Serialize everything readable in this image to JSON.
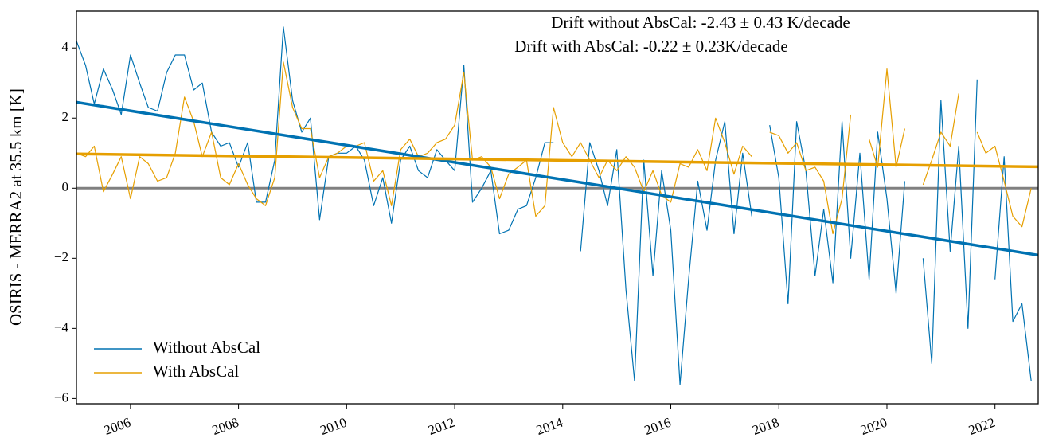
{
  "chart_data": {
    "type": "line",
    "annotations": [
      "Drift without AbsCal: -2.43 ± 0.43 K/decade",
      "Drift with AbsCal: -0.22 ± 0.23K/decade"
    ],
    "y_label": "OSIRIS - MERRA2 at 35.5 km [K]",
    "x": [
      2005,
      2005.17,
      2005.33,
      2005.5,
      2005.67,
      2005.83,
      2006,
      2006.17,
      2006.33,
      2006.5,
      2006.67,
      2006.83,
      2007,
      2007.17,
      2007.33,
      2007.5,
      2007.67,
      2007.83,
      2008,
      2008.17,
      2008.33,
      2008.5,
      2008.67,
      2008.83,
      2009,
      2009.17,
      2009.33,
      2009.5,
      2009.67,
      2009.83,
      2010,
      2010.17,
      2010.33,
      2010.5,
      2010.67,
      2010.83,
      2011,
      2011.17,
      2011.33,
      2011.5,
      2011.67,
      2011.83,
      2012,
      2012.17,
      2012.33,
      2012.5,
      2012.67,
      2012.83,
      2013,
      2013.17,
      2013.33,
      2013.5,
      2013.67,
      2013.83,
      2014,
      2014.17,
      2014.33,
      2014.5,
      2014.67,
      2014.83,
      2015,
      2015.17,
      2015.33,
      2015.5,
      2015.67,
      2015.83,
      2016,
      2016.17,
      2016.33,
      2016.5,
      2016.67,
      2016.83,
      2017,
      2017.17,
      2017.33,
      2017.5,
      2017.67,
      2017.83,
      2018,
      2018.17,
      2018.33,
      2018.5,
      2018.67,
      2018.83,
      2019,
      2019.17,
      2019.33,
      2019.5,
      2019.67,
      2019.83,
      2020,
      2020.17,
      2020.33,
      2020.5,
      2020.67,
      2020.83,
      2021,
      2021.17,
      2021.33,
      2021.5,
      2021.67,
      2021.83,
      2022,
      2022.17,
      2022.33,
      2022.5,
      2022.67
    ],
    "series": [
      {
        "name": "Without AbsCal",
        "color": "#0072b2",
        "values": [
          4.2,
          3.5,
          2.4,
          3.4,
          2.8,
          2.1,
          3.8,
          3.0,
          2.3,
          2.2,
          3.3,
          3.8,
          3.8,
          2.8,
          3.0,
          1.6,
          1.2,
          1.3,
          0.6,
          1.3,
          -0.4,
          -0.4,
          0.8,
          4.6,
          2.5,
          1.6,
          2.0,
          -0.9,
          0.9,
          1.0,
          1.0,
          1.2,
          0.8,
          -0.5,
          0.3,
          -1.0,
          0.8,
          1.2,
          0.5,
          0.3,
          1.1,
          0.8,
          0.5,
          3.5,
          -0.4,
          0.0,
          0.5,
          -1.3,
          -1.2,
          -0.6,
          -0.5,
          0.3,
          1.3,
          1.3,
          null,
          null,
          -1.8,
          1.3,
          0.5,
          -0.5,
          1.1,
          -2.9,
          -5.5,
          0.8,
          -2.5,
          0.5,
          -1.2,
          -5.6,
          -2.6,
          0.2,
          -1.2,
          0.8,
          1.9,
          -1.3,
          1.0,
          -0.8,
          null,
          1.8,
          0.3,
          -3.3,
          1.9,
          0.5,
          -2.5,
          -0.6,
          -2.7,
          1.9,
          -2.0,
          1.0,
          -2.6,
          1.6,
          -0.3,
          -3.0,
          0.2,
          null,
          -2.0,
          -5.0,
          2.5,
          -1.8,
          1.2,
          -4.0,
          3.1,
          null,
          -2.6,
          0.9,
          -3.8,
          -3.3,
          -5.5
        ]
      },
      {
        "name": "With AbsCal",
        "color": "#e69f00",
        "values": [
          1.0,
          0.9,
          1.2,
          -0.1,
          0.4,
          0.9,
          -0.3,
          0.9,
          0.7,
          0.2,
          0.3,
          1.0,
          2.6,
          1.9,
          0.9,
          1.6,
          0.3,
          0.1,
          0.7,
          0.1,
          -0.3,
          -0.5,
          0.3,
          3.6,
          2.3,
          1.7,
          1.7,
          0.3,
          0.9,
          1.0,
          1.2,
          1.2,
          1.3,
          0.2,
          0.5,
          -0.5,
          1.1,
          1.4,
          0.9,
          1.0,
          1.3,
          1.4,
          1.8,
          3.3,
          0.8,
          0.9,
          0.6,
          -0.3,
          0.4,
          0.6,
          0.8,
          -0.8,
          -0.5,
          2.3,
          1.3,
          0.9,
          1.3,
          0.8,
          0.3,
          0.8,
          0.5,
          0.9,
          0.6,
          -0.1,
          0.5,
          -0.2,
          -0.4,
          0.7,
          0.6,
          1.1,
          0.5,
          2.0,
          1.3,
          0.4,
          1.2,
          0.9,
          null,
          1.6,
          1.5,
          1.0,
          1.3,
          0.5,
          0.6,
          0.2,
          -1.3,
          -0.3,
          2.1,
          null,
          1.4,
          0.6,
          3.4,
          0.6,
          1.7,
          null,
          0.1,
          0.8,
          1.6,
          1.2,
          2.7,
          null,
          1.6,
          1.0,
          1.2,
          0.2,
          -0.8,
          -1.1,
          0.0
        ]
      }
    ],
    "trends": [
      {
        "color": "#0072b2",
        "x": [
          2005,
          2022.8
        ],
        "values": [
          2.45,
          -1.91
        ]
      },
      {
        "color": "#e69f00",
        "x": [
          2005,
          2022.8
        ],
        "values": [
          0.98,
          0.61
        ]
      }
    ],
    "hline": {
      "value": 0,
      "color": "#808080"
    },
    "xlim": [
      2005,
      2022.8
    ],
    "ylim": [
      -6.15,
      5.05
    ],
    "xticks": [
      2006,
      2008,
      2010,
      2012,
      2014,
      2016,
      2018,
      2020,
      2022
    ],
    "yticks": [
      {
        "value": -6,
        "label": "−6"
      },
      {
        "value": -4,
        "label": "−4"
      },
      {
        "value": -2,
        "label": "−2"
      },
      0,
      2,
      4
    ],
    "legend": "lower left"
  }
}
